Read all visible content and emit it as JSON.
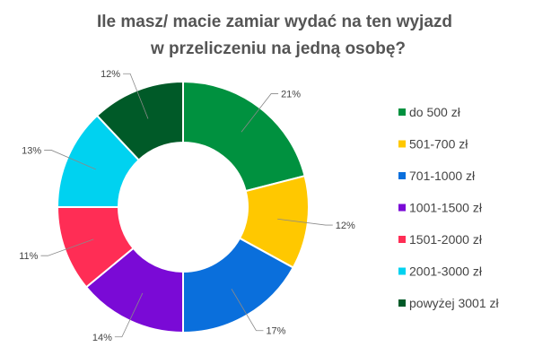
{
  "chart_data": {
    "type": "pie",
    "variant": "donut",
    "title_lines": [
      "Ile masz/ macie zamiar wydać na ten wyjazd",
      "w przeliczeniu na jedną osobę?"
    ],
    "categories": [
      "do 500 zł",
      "501-700 zł",
      "701-1000 zł",
      "1001-1500 zł",
      "1501-2000 zł",
      "2001-3000 zł",
      "powyżej 3001 zł"
    ],
    "values": [
      21,
      12,
      17,
      14,
      11,
      13,
      12
    ],
    "labels": [
      "21%",
      "12%",
      "17%",
      "14%",
      "11%",
      "13%",
      "12%"
    ],
    "colors": [
      "#00913f",
      "#ffc800",
      "#0a6fdc",
      "#7a0ad6",
      "#ff2d55",
      "#00d2f0",
      "#005a28"
    ],
    "legend_position": "right"
  }
}
